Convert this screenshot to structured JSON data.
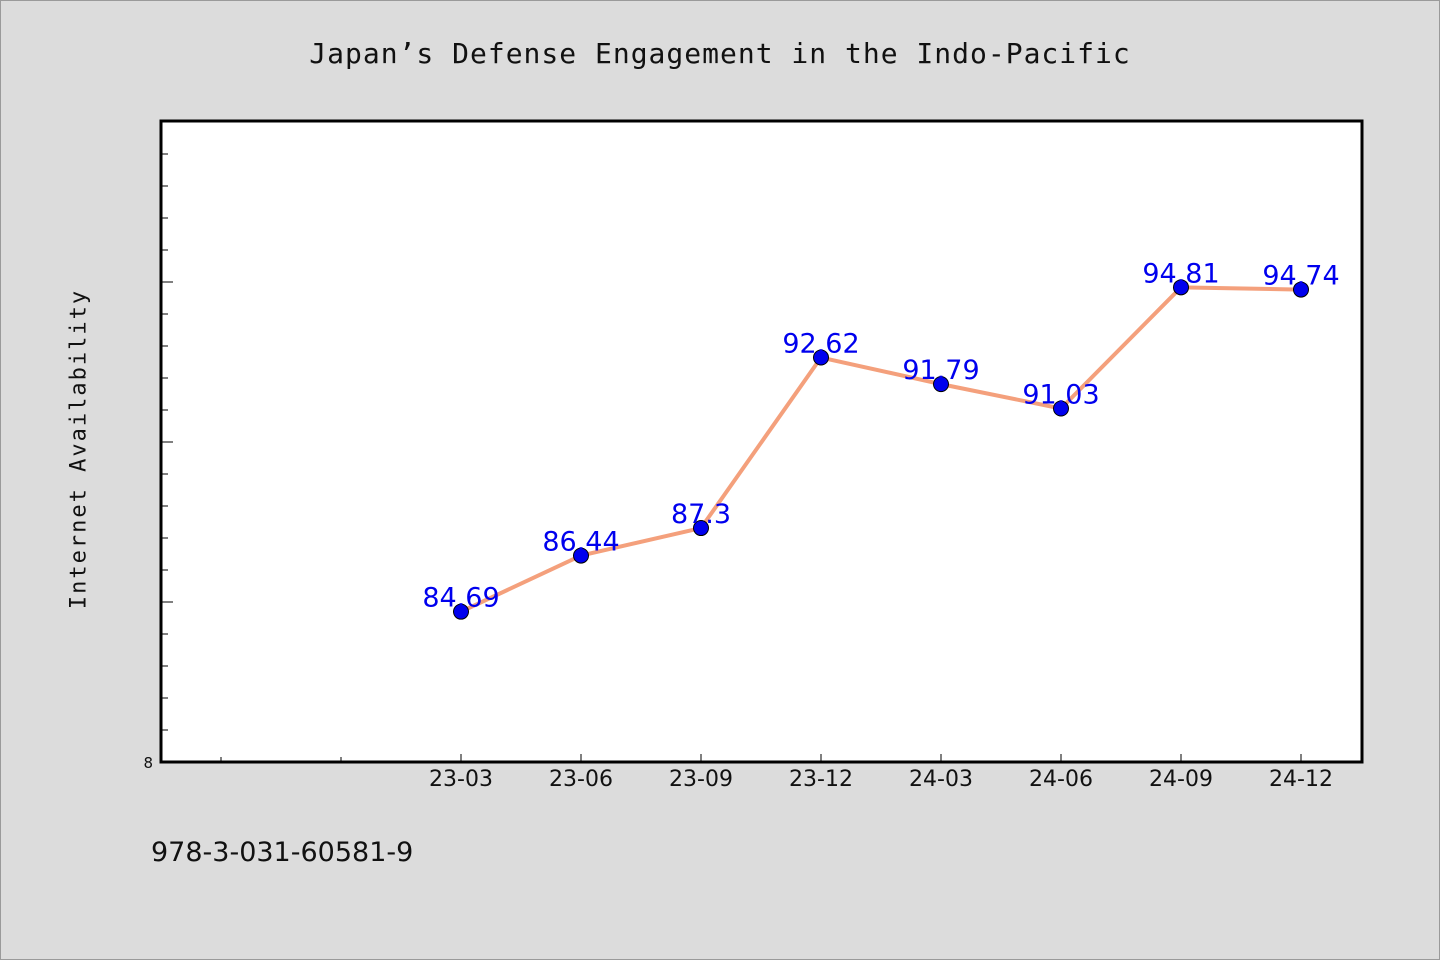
{
  "chart_data": {
    "type": "line",
    "title": "Japan’s Defense Engagement in the Indo-Pacific",
    "xlabel": "",
    "ylabel": "Internet Availability",
    "categories": [
      "23-03",
      "23-06",
      "23-09",
      "23-12",
      "24-03",
      "24-06",
      "24-09",
      "24-12"
    ],
    "series": [
      {
        "values": [
          84.69,
          86.44,
          87.3,
          92.62,
          91.79,
          91.03,
          94.81,
          94.74
        ],
        "data_labels": [
          "84.69",
          "86.44",
          "87.3",
          "92.62",
          "91.79",
          "91.03",
          "94.81",
          "94.74"
        ]
      }
    ],
    "y_tick_label": "8",
    "ylim": [
      80,
      100
    ],
    "grid": false,
    "legend": "none",
    "colors": {
      "line": "#f4a07c",
      "marker": "#0000ee",
      "data_label": "#0000ee",
      "plot_background": "#ffffff",
      "page_background": "#dcdcdc"
    }
  },
  "footer": {
    "isbn": "978-3-031-60581-9"
  }
}
